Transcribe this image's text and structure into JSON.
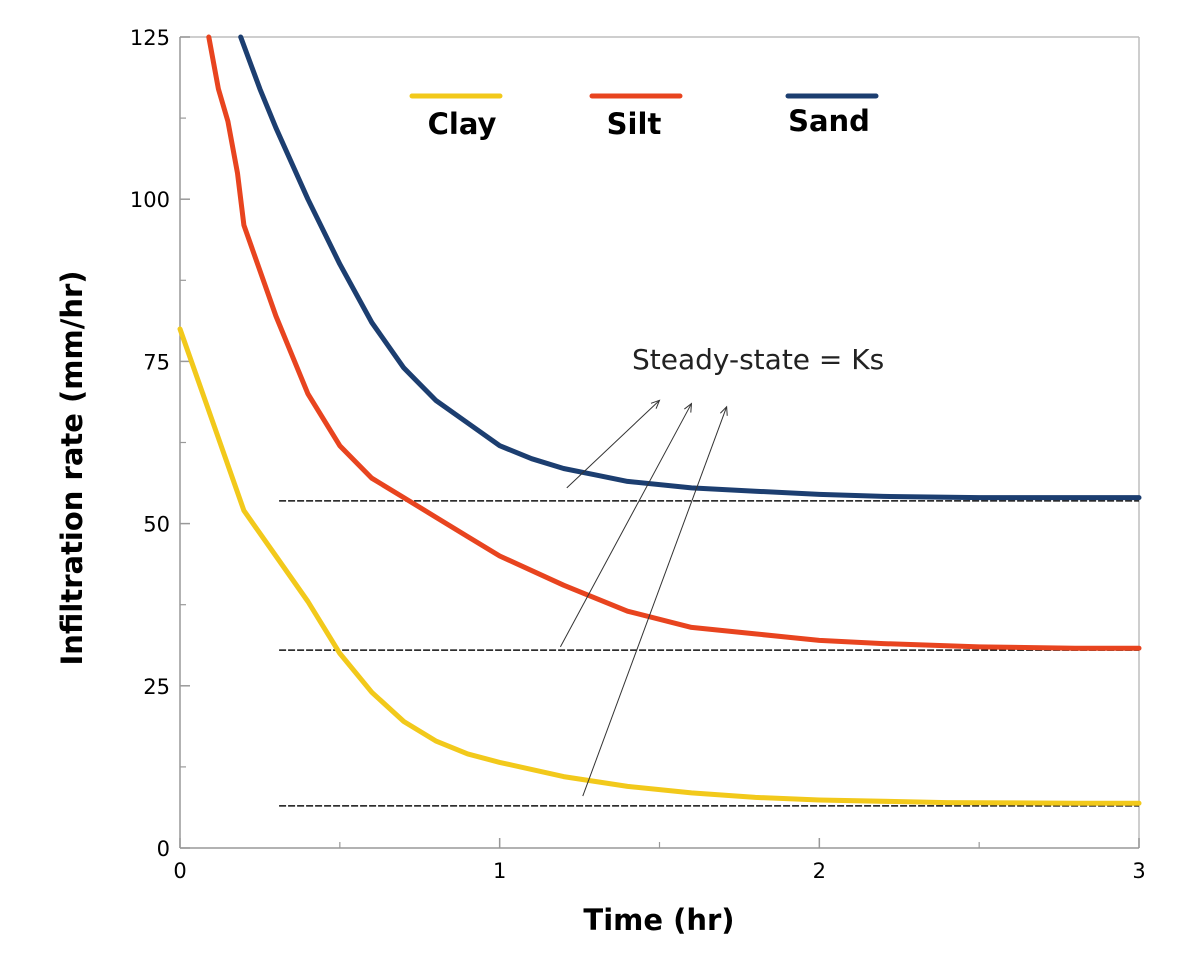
{
  "chart_data": {
    "type": "line",
    "xlabel": "Time (hr)",
    "ylabel": "Infiltration rate (mm/hr)",
    "xlim": [
      0,
      3
    ],
    "ylim": [
      0,
      125
    ],
    "x_ticks": [
      0,
      1,
      2,
      3
    ],
    "x_tick_labels": [
      "0",
      "1",
      "2",
      "3"
    ],
    "x_minor_ticks": [
      0.5,
      1.5,
      2.5
    ],
    "y_ticks": [
      0,
      25,
      50,
      75,
      100,
      125
    ],
    "y_tick_labels": [
      "0",
      "25",
      "50",
      "75",
      "100",
      "125"
    ],
    "y_minor_ticks": [
      12.5,
      37.5,
      62.5,
      87.5,
      112.5
    ],
    "grid": false,
    "legend": "top",
    "series": [
      {
        "name": "Clay",
        "color": "#f2c91b",
        "x": [
          0,
          0.1,
          0.2,
          0.3,
          0.4,
          0.5,
          0.6,
          0.7,
          0.8,
          0.9,
          1.0,
          1.2,
          1.4,
          1.6,
          1.8,
          2.0,
          2.4,
          2.8,
          3.0
        ],
        "y": [
          80,
          66,
          52,
          45,
          38,
          30,
          24,
          19.5,
          16.5,
          14.5,
          13.2,
          11,
          9.5,
          8.5,
          7.8,
          7.4,
          7.0,
          6.9,
          6.9
        ]
      },
      {
        "name": "Silt",
        "color": "#e8441f",
        "x": [
          0.09,
          0.12,
          0.15,
          0.18,
          0.2,
          0.25,
          0.3,
          0.35,
          0.4,
          0.5,
          0.6,
          0.7,
          0.8,
          0.9,
          1.0,
          1.2,
          1.4,
          1.6,
          1.8,
          2.0,
          2.2,
          2.5,
          2.8,
          3.0
        ],
        "y": [
          125,
          117,
          112,
          104,
          96,
          89,
          82,
          76,
          70,
          62,
          57,
          54,
          51,
          48,
          45,
          40.5,
          36.5,
          34,
          33,
          32,
          31.5,
          31.0,
          30.8,
          30.8
        ]
      },
      {
        "name": "Sand",
        "color": "#1c3e70",
        "x": [
          0.19,
          0.25,
          0.3,
          0.4,
          0.5,
          0.6,
          0.7,
          0.8,
          0.9,
          1.0,
          1.1,
          1.2,
          1.3,
          1.4,
          1.6,
          1.8,
          2.0,
          2.2,
          2.5,
          3.0
        ],
        "y": [
          125,
          117,
          111,
          100,
          90,
          81,
          74,
          69,
          65.5,
          62,
          60,
          58.5,
          57.5,
          56.5,
          55.5,
          55.0,
          54.5,
          54.2,
          54.0,
          54.0
        ]
      }
    ],
    "reference_lines": [
      {
        "y": 53.5,
        "x_start": 0.31,
        "x_end": 3.0,
        "style": "dashed"
      },
      {
        "y": 30.5,
        "x_start": 0.31,
        "x_end": 3.0,
        "style": "dashed"
      },
      {
        "y": 6.5,
        "x_start": 0.31,
        "x_end": 3.0,
        "style": "dashed"
      }
    ],
    "annotation": {
      "text": "Steady-state = Ks",
      "arrows": [
        {
          "from": [
            1.21,
            55.5
          ],
          "to": [
            1.5,
            69
          ]
        },
        {
          "from": [
            1.19,
            31
          ],
          "to": [
            1.6,
            68.5
          ]
        },
        {
          "from": [
            1.26,
            8
          ],
          "to": [
            1.71,
            68
          ]
        }
      ]
    }
  }
}
